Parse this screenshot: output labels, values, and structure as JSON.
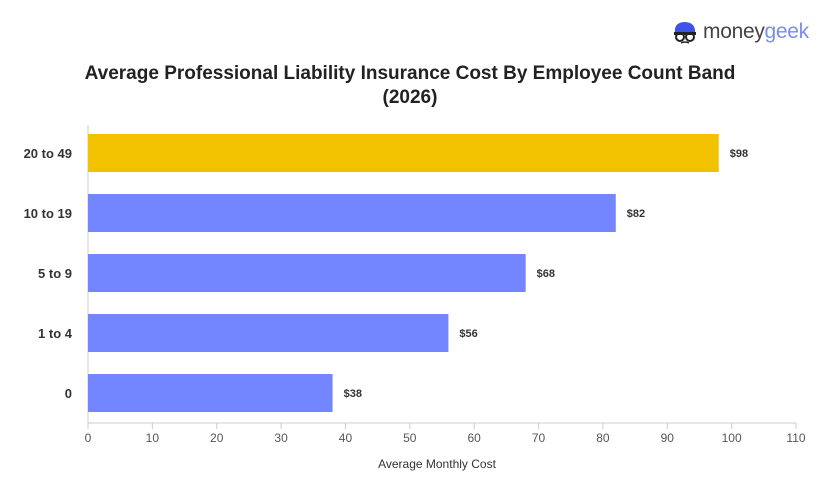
{
  "logo": {
    "part1": "money",
    "part2": "geek"
  },
  "chart_data": {
    "type": "bar",
    "orientation": "horizontal",
    "title": "Average Professional Liability Insurance Cost By Employee Count Band (2026)",
    "title_line1": "Average Professional Liability Insurance Cost By Employee Count Band",
    "title_line2": "(2026)",
    "categories": [
      "20 to 49",
      "10 to 19",
      "5 to 9",
      "1 to 4",
      "0"
    ],
    "values": [
      98,
      82,
      68,
      56,
      38
    ],
    "data_labels": [
      "$98",
      "$82",
      "$68",
      "$56",
      "$38"
    ],
    "highlight_index": 0,
    "colors": {
      "highlight": "#f2c200",
      "default": "#7385ff"
    },
    "xlabel": "Average Monthly Cost",
    "ylabel": "",
    "xlim": [
      0,
      110
    ],
    "xticks": [
      0,
      10,
      20,
      30,
      40,
      50,
      60,
      70,
      80,
      90,
      100,
      110
    ],
    "grid": false
  }
}
